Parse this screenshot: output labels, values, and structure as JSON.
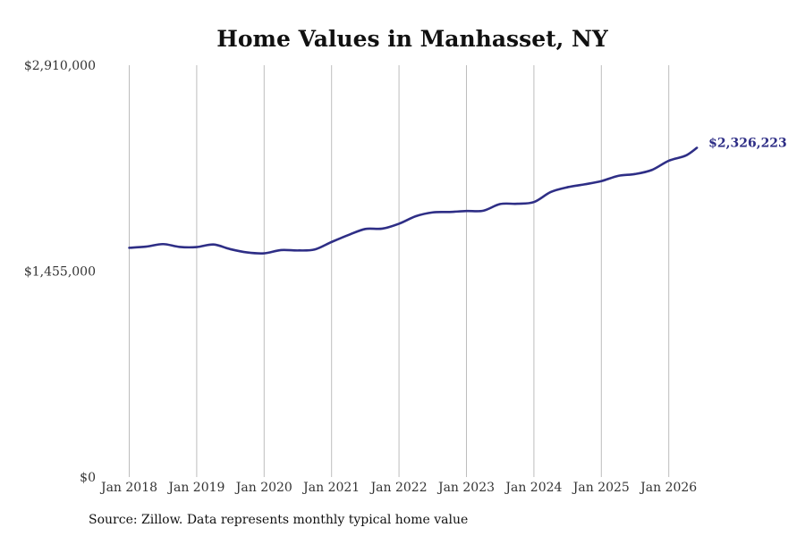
{
  "chart_data": {
    "type": "line",
    "title": "Home Values in Manhasset, NY",
    "xlabel": "",
    "ylabel": "",
    "ylim": [
      0,
      2910000
    ],
    "yticks": [
      {
        "value": 0,
        "label": "$0"
      },
      {
        "value": 1455000,
        "label": "$1,455,000"
      },
      {
        "value": 2910000,
        "label": "$2,910,000"
      }
    ],
    "xticks": [
      {
        "date": "2018-01",
        "label": "Jan 2018"
      },
      {
        "date": "2019-01",
        "label": "Jan 2019"
      },
      {
        "date": "2020-01",
        "label": "Jan 2020"
      },
      {
        "date": "2021-01",
        "label": "Jan 2021"
      },
      {
        "date": "2022-01",
        "label": "Jan 2022"
      },
      {
        "date": "2023-01",
        "label": "Jan 2023"
      },
      {
        "date": "2024-01",
        "label": "Jan 2024"
      },
      {
        "date": "2025-01",
        "label": "Jan 2025"
      },
      {
        "date": "2026-01",
        "label": "Jan 2026"
      }
    ],
    "grid": "vertical",
    "legend": "none",
    "series": [
      {
        "color": "#2e2e86",
        "end_label": "$2,326,223",
        "points": [
          {
            "date": "2018-01",
            "value": 1620000
          },
          {
            "date": "2018-04",
            "value": 1628000
          },
          {
            "date": "2018-07",
            "value": 1646000
          },
          {
            "date": "2018-10",
            "value": 1626000
          },
          {
            "date": "2019-01",
            "value": 1625000
          },
          {
            "date": "2019-04",
            "value": 1643000
          },
          {
            "date": "2019-07",
            "value": 1610000
          },
          {
            "date": "2019-10",
            "value": 1587000
          },
          {
            "date": "2020-01",
            "value": 1581000
          },
          {
            "date": "2020-04",
            "value": 1604000
          },
          {
            "date": "2020-07",
            "value": 1601000
          },
          {
            "date": "2020-10",
            "value": 1608000
          },
          {
            "date": "2021-01",
            "value": 1661000
          },
          {
            "date": "2021-04",
            "value": 1710000
          },
          {
            "date": "2021-07",
            "value": 1753000
          },
          {
            "date": "2021-10",
            "value": 1755000
          },
          {
            "date": "2022-01",
            "value": 1790000
          },
          {
            "date": "2022-04",
            "value": 1843000
          },
          {
            "date": "2022-07",
            "value": 1870000
          },
          {
            "date": "2022-10",
            "value": 1873000
          },
          {
            "date": "2023-01",
            "value": 1880000
          },
          {
            "date": "2023-04",
            "value": 1882000
          },
          {
            "date": "2023-07",
            "value": 1929000
          },
          {
            "date": "2023-10",
            "value": 1931000
          },
          {
            "date": "2024-01",
            "value": 1943000
          },
          {
            "date": "2024-04",
            "value": 2014000
          },
          {
            "date": "2024-07",
            "value": 2048000
          },
          {
            "date": "2024-10",
            "value": 2068000
          },
          {
            "date": "2025-01",
            "value": 2091000
          },
          {
            "date": "2025-04",
            "value": 2128000
          },
          {
            "date": "2025-07",
            "value": 2141000
          },
          {
            "date": "2025-10",
            "value": 2170000
          },
          {
            "date": "2026-01",
            "value": 2235000
          },
          {
            "date": "2026-04",
            "value": 2271000
          },
          {
            "date": "2026-06",
            "value": 2326223
          }
        ]
      }
    ]
  },
  "footer": {
    "source": "Source: Zillow. Data represents monthly typical home value"
  }
}
